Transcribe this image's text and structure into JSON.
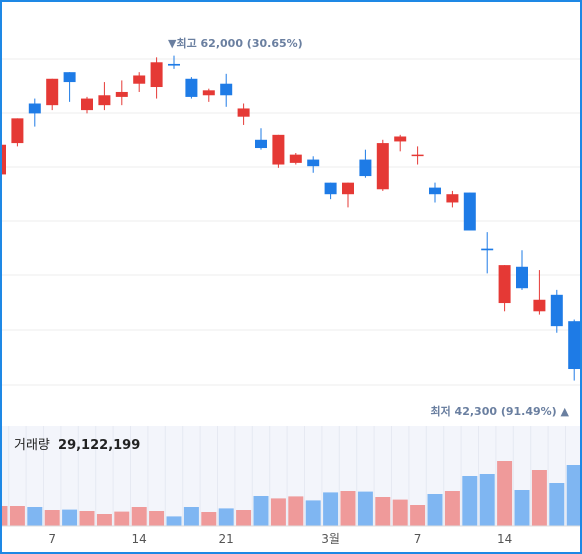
{
  "chart_data": {
    "type": "candlestick",
    "price_axis": {
      "ylim": [
        41000,
        63800
      ]
    },
    "high_marker": {
      "text": "▼최고 62,000 (30.65%)",
      "value": 62000
    },
    "low_marker": {
      "text": "최저 42,300 (91.49%) ▲",
      "value": 42300
    },
    "volume_label": "거래량",
    "volume_total": "29,122,199",
    "x_tick_labels": [
      {
        "index": 3,
        "label": "7"
      },
      {
        "index": 8,
        "label": "14"
      },
      {
        "index": 13,
        "label": "21"
      },
      {
        "index": 19,
        "label": "3월"
      },
      {
        "index": 24,
        "label": "7"
      },
      {
        "index": 29,
        "label": "14"
      }
    ],
    "colors": {
      "up": "#e53935",
      "down": "#1e7be6",
      "up_volume": "#ef9a9a",
      "down_volume": "#7fb6f2",
      "annotation": "#6a7fa0",
      "grid": "#ececec",
      "frame": "#1e88e5"
    },
    "candles": [
      {
        "open": 54800,
        "close": 56600,
        "high": 56900,
        "low": 54400,
        "volume": 1.0
      },
      {
        "open": 56700,
        "close": 58200,
        "high": 58200,
        "low": 56500,
        "volume": 1.0
      },
      {
        "open": 59100,
        "close": 58500,
        "high": 59400,
        "low": 57700,
        "volume": 0.95
      },
      {
        "open": 59000,
        "close": 60600,
        "high": 60600,
        "low": 58700,
        "volume": 0.8
      },
      {
        "open": 61000,
        "close": 60400,
        "high": 61000,
        "low": 59200,
        "volume": 0.82
      },
      {
        "open": 58700,
        "close": 59400,
        "high": 59500,
        "low": 58500,
        "volume": 0.75
      },
      {
        "open": 59000,
        "close": 59600,
        "high": 60400,
        "low": 58700,
        "volume": 0.6
      },
      {
        "open": 59500,
        "close": 59800,
        "high": 60500,
        "low": 59000,
        "volume": 0.72
      },
      {
        "open": 60300,
        "close": 60800,
        "high": 61000,
        "low": 59800,
        "volume": 0.95
      },
      {
        "open": 60100,
        "close": 61600,
        "high": 61900,
        "low": 59400,
        "volume": 0.75
      },
      {
        "open": 61500,
        "close": 61400,
        "high": 62000,
        "low": 61200,
        "volume": 0.48
      },
      {
        "open": 60600,
        "close": 59500,
        "high": 60700,
        "low": 59400,
        "volume": 0.95
      },
      {
        "open": 59600,
        "close": 59900,
        "high": 60000,
        "low": 59200,
        "volume": 0.7
      },
      {
        "open": 60300,
        "close": 59600,
        "high": 60900,
        "low": 58900,
        "volume": 0.88
      },
      {
        "open": 58300,
        "close": 58800,
        "high": 59100,
        "low": 57800,
        "volume": 0.8
      },
      {
        "open": 56900,
        "close": 56400,
        "high": 57600,
        "low": 56300,
        "volume": 1.5
      },
      {
        "open": 55400,
        "close": 57200,
        "high": 57200,
        "low": 55200,
        "volume": 1.38
      },
      {
        "open": 55500,
        "close": 56000,
        "high": 56100,
        "low": 55400,
        "volume": 1.48
      },
      {
        "open": 55700,
        "close": 55300,
        "high": 55900,
        "low": 54900,
        "volume": 1.28
      },
      {
        "open": 54300,
        "close": 53600,
        "high": 54300,
        "low": 53300,
        "volume": 1.68
      },
      {
        "open": 53600,
        "close": 54300,
        "high": 54300,
        "low": 52800,
        "volume": 1.75
      },
      {
        "open": 55700,
        "close": 54700,
        "high": 56300,
        "low": 54600,
        "volume": 1.72
      },
      {
        "open": 53900,
        "close": 56700,
        "high": 56900,
        "low": 53800,
        "volume": 1.45
      },
      {
        "open": 56800,
        "close": 57100,
        "high": 57200,
        "low": 56200,
        "volume": 1.32
      },
      {
        "open": 56000,
        "close": 56000,
        "high": 56500,
        "low": 55400,
        "volume": 1.05
      },
      {
        "open": 54000,
        "close": 53600,
        "high": 54300,
        "low": 53100,
        "volume": 1.6
      },
      {
        "open": 53100,
        "close": 53600,
        "high": 53800,
        "low": 52800,
        "volume": 1.75
      },
      {
        "open": 53700,
        "close": 51400,
        "high": 53700,
        "low": 51400,
        "volume": 2.5
      },
      {
        "open": 50300,
        "close": 50200,
        "high": 51300,
        "low": 48800,
        "volume": 2.6
      },
      {
        "open": 47000,
        "close": 49300,
        "high": 49300,
        "low": 46500,
        "volume": 3.25
      },
      {
        "open": 49200,
        "close": 47900,
        "high": 50200,
        "low": 47800,
        "volume": 1.8
      },
      {
        "open": 46500,
        "close": 47200,
        "high": 49000,
        "low": 46300,
        "volume": 2.8
      },
      {
        "open": 47500,
        "close": 45600,
        "high": 47800,
        "low": 45200,
        "volume": 2.15
      },
      {
        "open": 45900,
        "close": 43000,
        "high": 46000,
        "low": 42300,
        "volume": 3.05
      },
      {
        "open": 45400,
        "close": 45700,
        "high": 46100,
        "low": 45300,
        "volume": 2.65
      }
    ]
  }
}
